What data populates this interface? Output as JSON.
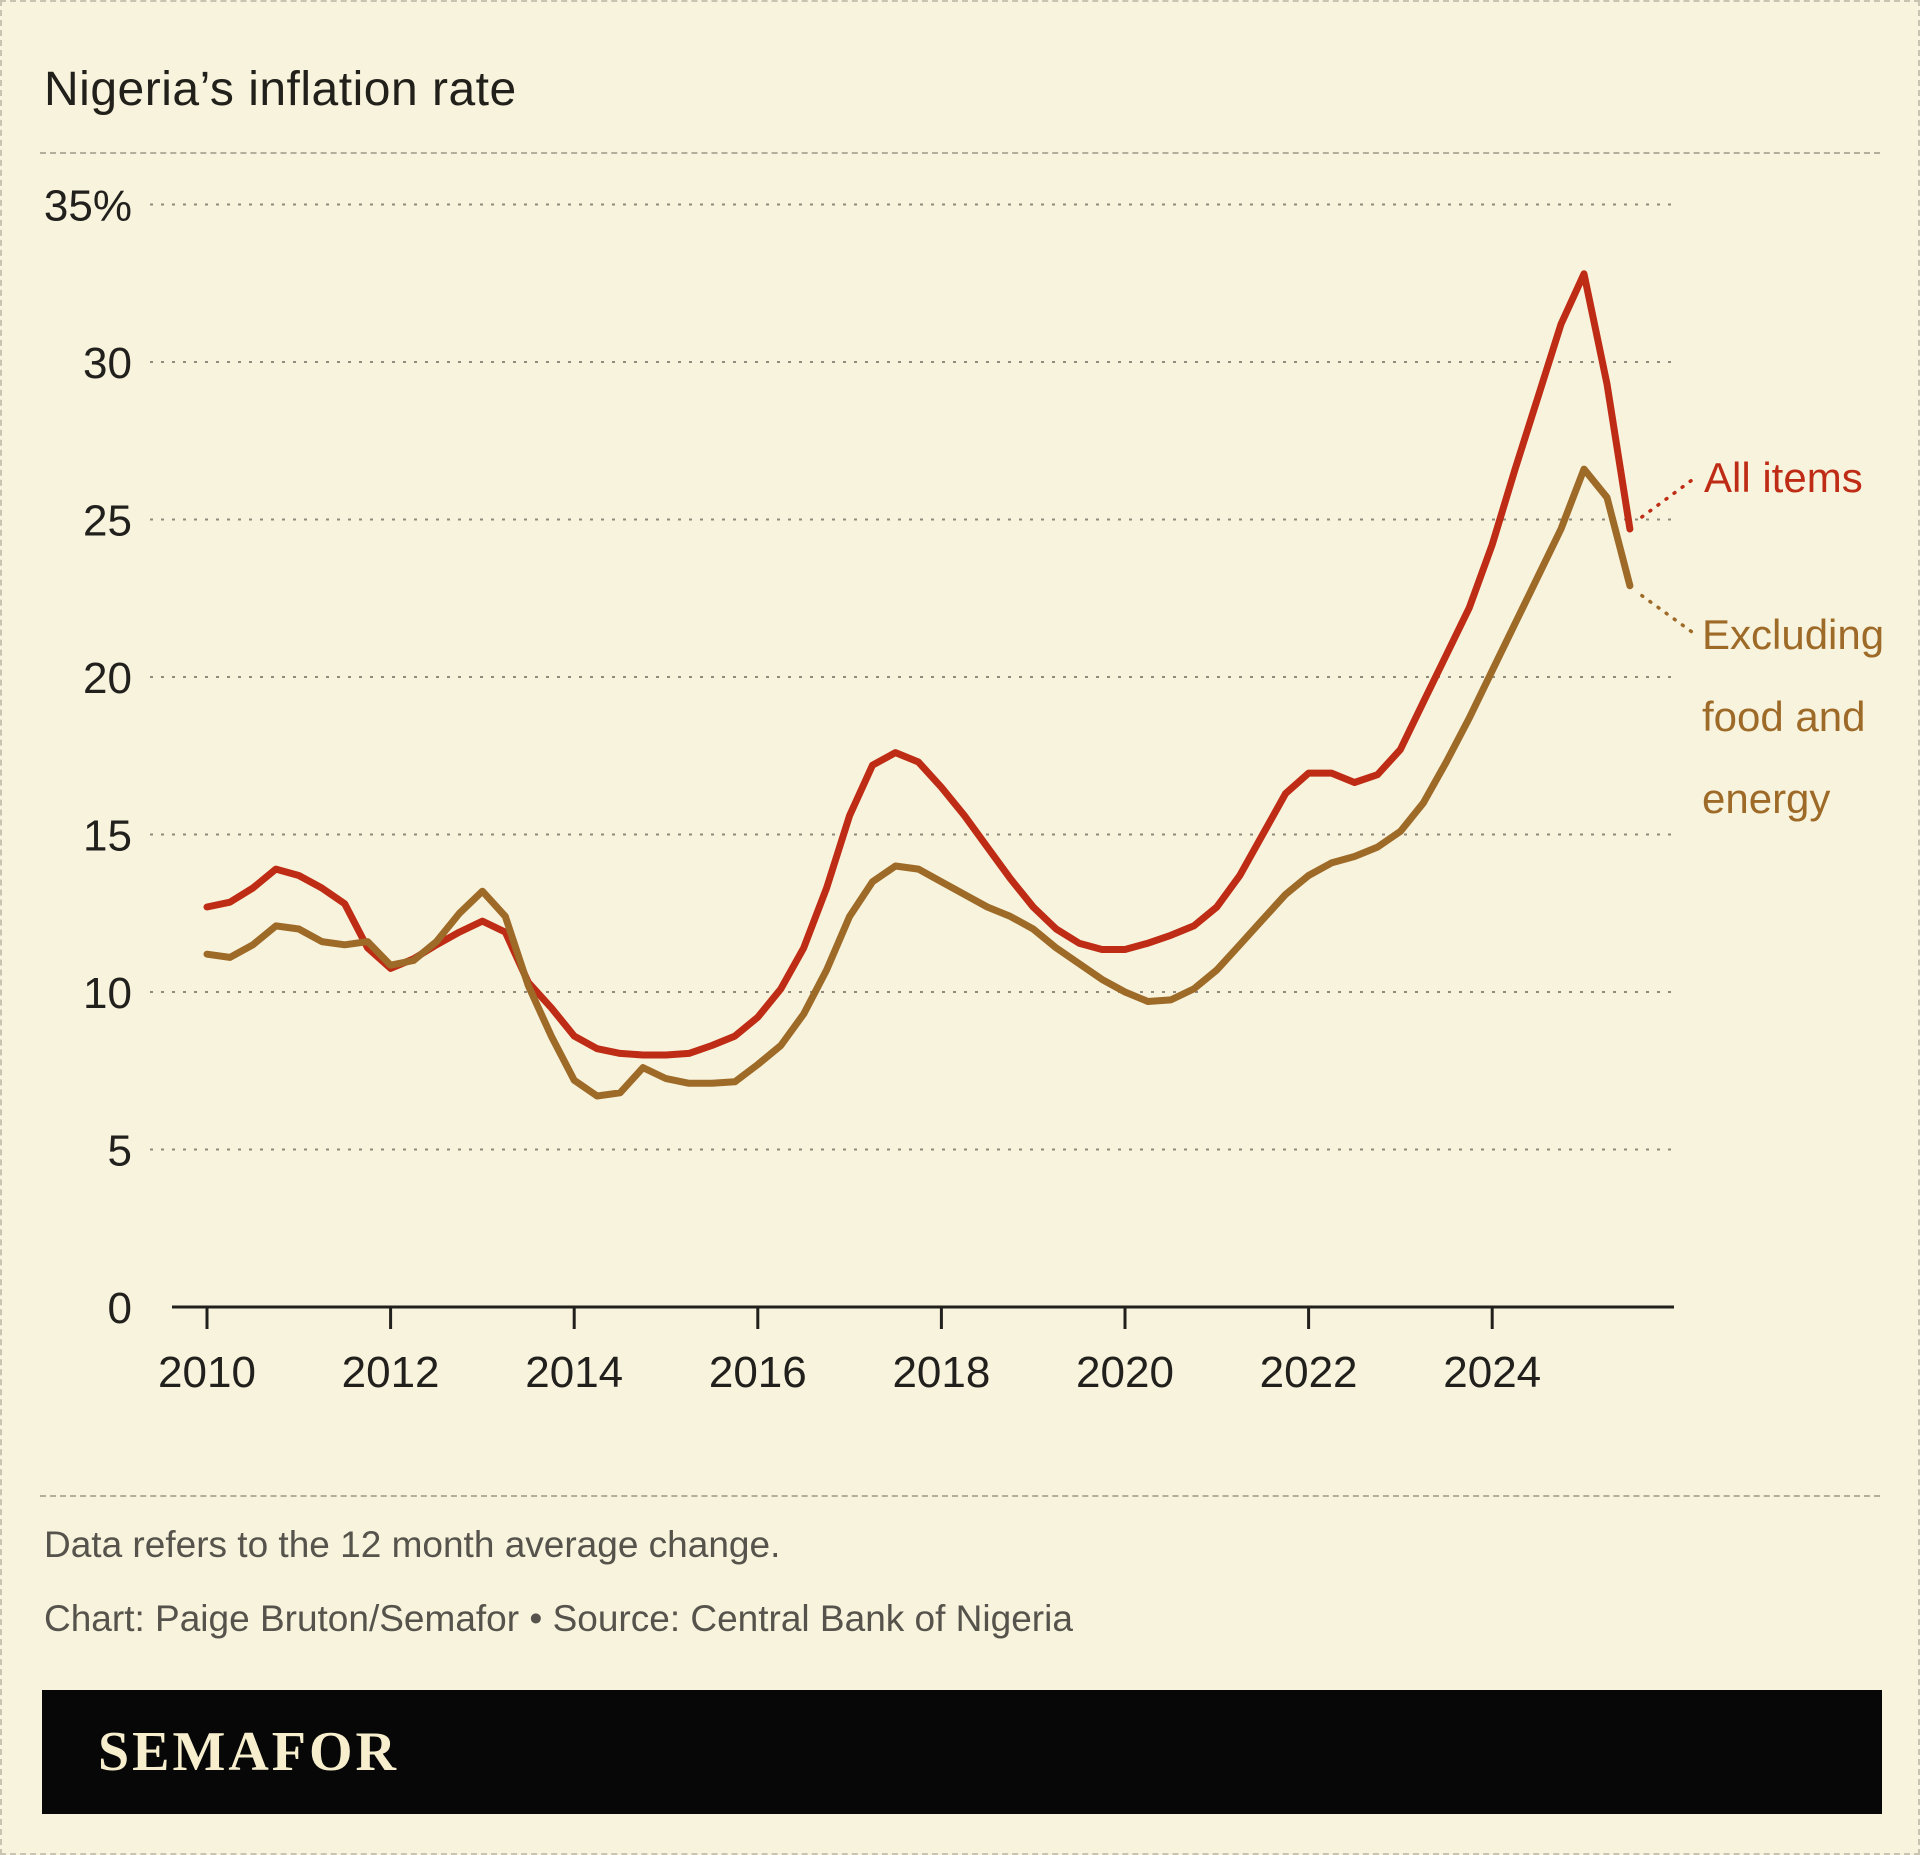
{
  "title": "Nigeria’s inflation rate",
  "notes": {
    "line1": "Data refers to the 12 month average change.",
    "line2": "Chart: Paige Bruton/Semafor • Source: Central Bank of Nigeria"
  },
  "logo_text": "SEMAFOR",
  "colors": {
    "background": "#f8f3dd",
    "all_items": "#bf2c15",
    "excluding_food_energy": "#9e6a28",
    "grid": "#8f8a7c",
    "axis": "#21201c",
    "note_text": "#55534b"
  },
  "chart_data": {
    "type": "line",
    "title": "Nigeria’s inflation rate",
    "xlabel": "",
    "ylabel": "%",
    "unit": "%",
    "ylim": [
      0,
      35
    ],
    "yticks": [
      0,
      5,
      10,
      15,
      20,
      25,
      30,
      35
    ],
    "ytick_labels": [
      "0",
      "5",
      "10",
      "15",
      "20",
      "25",
      "30",
      "35%"
    ],
    "xticks": [
      2010,
      2012,
      2014,
      2016,
      2018,
      2020,
      2022,
      2024
    ],
    "xlim": [
      2009.5,
      2026
    ],
    "grid": "horizontal-dashed",
    "legend_position": "right-annotations",
    "x": [
      2010,
      2010.25,
      2010.5,
      2010.75,
      2011,
      2011.25,
      2011.5,
      2011.75,
      2012,
      2012.25,
      2012.5,
      2012.75,
      2013,
      2013.25,
      2013.5,
      2013.75,
      2014,
      2014.25,
      2014.5,
      2014.75,
      2015,
      2015.25,
      2015.5,
      2015.75,
      2016,
      2016.25,
      2016.5,
      2016.75,
      2017,
      2017.25,
      2017.5,
      2017.75,
      2018,
      2018.25,
      2018.5,
      2018.75,
      2019,
      2019.25,
      2019.5,
      2019.75,
      2020,
      2020.25,
      2020.5,
      2020.75,
      2021,
      2021.25,
      2021.5,
      2021.75,
      2022,
      2022.25,
      2022.5,
      2022.75,
      2023,
      2023.25,
      2023.5,
      2023.75,
      2024,
      2024.25,
      2024.5,
      2024.75,
      2025,
      2025.25,
      2025.5
    ],
    "series": [
      {
        "name": "All items",
        "color": "#bf2c15",
        "values": [
          12.7,
          12.85,
          13.3,
          13.9,
          13.7,
          13.3,
          12.8,
          11.4,
          10.75,
          11.05,
          11.5,
          11.9,
          12.25,
          11.9,
          10.3,
          9.5,
          8.6,
          8.2,
          8.05,
          8.0,
          8.0,
          8.05,
          8.3,
          8.6,
          9.2,
          10.1,
          11.4,
          13.3,
          15.6,
          17.2,
          17.6,
          17.3,
          16.5,
          15.6,
          14.6,
          13.6,
          12.7,
          12.0,
          11.55,
          11.35,
          11.35,
          11.55,
          11.8,
          12.1,
          12.7,
          13.7,
          15.0,
          16.3,
          16.95,
          16.95,
          16.65,
          16.9,
          17.7,
          19.2,
          20.7,
          22.2,
          24.2,
          26.6,
          28.9,
          31.2,
          32.8,
          29.3,
          24.7
        ]
      },
      {
        "name": "Excluding food and energy",
        "color": "#9e6a28",
        "values": [
          11.2,
          11.1,
          11.5,
          12.1,
          12.0,
          11.6,
          11.5,
          11.6,
          10.85,
          11.0,
          11.6,
          12.5,
          13.2,
          12.4,
          10.2,
          8.6,
          7.2,
          6.7,
          6.8,
          7.6,
          7.25,
          7.1,
          7.1,
          7.15,
          7.7,
          8.3,
          9.3,
          10.7,
          12.4,
          13.5,
          14.0,
          13.9,
          13.5,
          13.1,
          12.7,
          12.4,
          12.0,
          11.4,
          10.9,
          10.4,
          10.0,
          9.7,
          9.75,
          10.1,
          10.7,
          11.5,
          12.3,
          13.1,
          13.7,
          14.1,
          14.3,
          14.6,
          15.1,
          16.0,
          17.3,
          18.7,
          20.2,
          21.7,
          23.2,
          24.7,
          26.6,
          25.7,
          22.9
        ]
      }
    ]
  }
}
